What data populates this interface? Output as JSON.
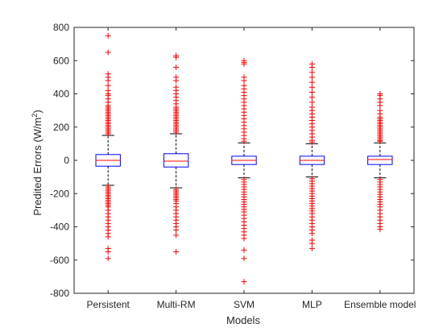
{
  "chart_data": {
    "type": "box",
    "title": "",
    "xlabel": "Models",
    "ylabel": "Predited Errors (W/m",
    "ylabel_superscript": "2",
    "ylabel_suffix": ")",
    "ylim": [
      -800,
      800
    ],
    "yticks": [
      -800,
      -600,
      -400,
      -200,
      0,
      200,
      400,
      600,
      800
    ],
    "categories": [
      "Persistent",
      "Multi-RM",
      "SVM",
      "MLP",
      "Ensemble model"
    ],
    "series": [
      {
        "category": "Persistent",
        "whisker_low": -150,
        "q1": -35,
        "median": 0,
        "q3": 35,
        "whisker_high": 150,
        "outliers": [
          750,
          650,
          520,
          500,
          480,
          450,
          420,
          400,
          390,
          370,
          350,
          330,
          320,
          310,
          300,
          290,
          280,
          270,
          260,
          250,
          240,
          230,
          220,
          210,
          200,
          190,
          180,
          170,
          160,
          -160,
          -170,
          -180,
          -190,
          -200,
          -210,
          -220,
          -230,
          -240,
          -250,
          -260,
          -270,
          -280,
          -300,
          -320,
          -340,
          -360,
          -380,
          -400,
          -420,
          -440,
          -460,
          -530,
          -550,
          -590
        ]
      },
      {
        "category": "Multi-RM",
        "whisker_low": -165,
        "q1": -40,
        "median": -5,
        "q3": 40,
        "whisker_high": 160,
        "outliers": [
          630,
          620,
          560,
          500,
          480,
          440,
          420,
          400,
          380,
          360,
          340,
          320,
          310,
          300,
          290,
          280,
          270,
          260,
          250,
          240,
          230,
          220,
          210,
          200,
          190,
          180,
          170,
          -175,
          -185,
          -195,
          -205,
          -215,
          -225,
          -235,
          -245,
          -260,
          -280,
          -300,
          -320,
          -340,
          -360,
          -380,
          -400,
          -420,
          -450,
          -550
        ]
      },
      {
        "category": "SVM",
        "whisker_low": -105,
        "q1": -25,
        "median": 0,
        "q3": 25,
        "whisker_high": 105,
        "outliers": [
          600,
          590,
          580,
          500,
          480,
          450,
          430,
          410,
          390,
          370,
          350,
          330,
          310,
          290,
          270,
          250,
          230,
          210,
          190,
          170,
          150,
          130,
          115,
          -115,
          -130,
          -145,
          -160,
          -175,
          -190,
          -205,
          -220,
          -235,
          -250,
          -265,
          -280,
          -295,
          -310,
          -330,
          -350,
          -370,
          -390,
          -410,
          -430,
          -450,
          -470,
          -540,
          -590,
          -730
        ]
      },
      {
        "category": "MLP",
        "whisker_low": -100,
        "q1": -25,
        "median": 0,
        "q3": 25,
        "whisker_high": 100,
        "outliers": [
          580,
          560,
          530,
          500,
          470,
          440,
          410,
          380,
          350,
          320,
          300,
          280,
          260,
          240,
          220,
          200,
          180,
          160,
          140,
          120,
          110,
          -110,
          -125,
          -140,
          -155,
          -170,
          -185,
          -200,
          -215,
          -230,
          -245,
          -260,
          -275,
          -290,
          -305,
          -320,
          -340,
          -360,
          -380,
          -400,
          -420,
          -440,
          -480,
          -500,
          -530
        ]
      },
      {
        "category": "Ensemble model",
        "whisker_low": -105,
        "q1": -25,
        "median": 5,
        "q3": 25,
        "whisker_high": 105,
        "outliers": [
          400,
          390,
          370,
          350,
          330,
          300,
          280,
          260,
          250,
          240,
          230,
          220,
          210,
          200,
          190,
          180,
          170,
          160,
          150,
          140,
          130,
          120,
          115,
          -115,
          -130,
          -145,
          -160,
          -175,
          -190,
          -205,
          -220,
          -235,
          -250,
          -265,
          -280,
          -300,
          -320,
          -340,
          -360,
          -380,
          -400,
          -415
        ]
      }
    ],
    "colors": {
      "box": "#0000ff",
      "median": "#ff0000",
      "whisker": "#000000",
      "outlier": "#ff0000",
      "axis": "#262626"
    },
    "grid": false,
    "legend": "none"
  }
}
